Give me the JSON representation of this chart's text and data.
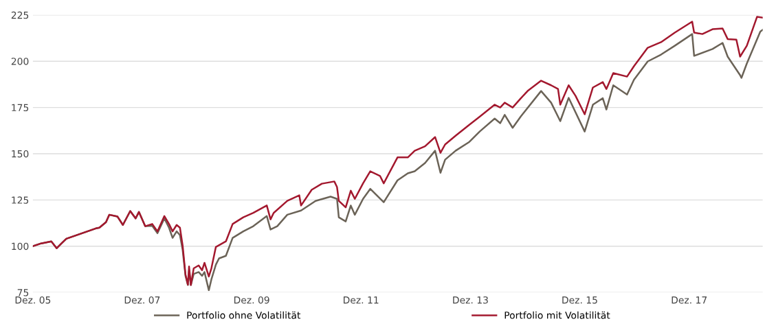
{
  "chart_data": {
    "type": "line",
    "xlim": [
      "2005-12-01",
      "2019-04-06"
    ],
    "xticks": [
      {
        "value": "2005-12-01",
        "label": "Dez. 05"
      },
      {
        "value": "2007-12-01",
        "label": "Dez. 07"
      },
      {
        "value": "2009-12-01",
        "label": "Dez. 09"
      },
      {
        "value": "2011-12-01",
        "label": "Dez. 11"
      },
      {
        "value": "2013-12-01",
        "label": "Dez. 13"
      },
      {
        "value": "2015-12-01",
        "label": "Dez. 15"
      },
      {
        "value": "2017-12-01",
        "label": "Dez. 17"
      }
    ],
    "ylim": [
      75,
      225
    ],
    "yticks": [
      75,
      100,
      125,
      150,
      175,
      200,
      225
    ],
    "grid": "y",
    "legend": "bottom",
    "line_style": "solid",
    "marker": "none",
    "series": [
      {
        "name": "Portfolio ohne Volatilität",
        "color": "#6b6357",
        "x": [
          "2005-12-01",
          "2006-01-25",
          "2006-04-03",
          "2006-05-09",
          "2006-06-10",
          "2006-07-12",
          "2007-01-25",
          "2007-02-18",
          "2007-04-03",
          "2007-04-25",
          "2007-06-19",
          "2007-07-25",
          "2007-09-12",
          "2007-10-18",
          "2007-11-09",
          "2007-12-21",
          "2008-02-06",
          "2008-03-12",
          "2008-04-27",
          "2008-05-28",
          "2008-06-21",
          "2008-07-18",
          "2008-08-09",
          "2008-08-27",
          "2008-09-15",
          "2008-10-01",
          "2008-10-09",
          "2008-10-21",
          "2008-11-09",
          "2008-12-12",
          "2009-01-04",
          "2009-01-20",
          "2009-02-18",
          "2009-03-07",
          "2009-04-06",
          "2009-04-27",
          "2009-06-12",
          "2009-07-27",
          "2009-10-06",
          "2009-12-12",
          "2010-03-12",
          "2010-04-06",
          "2010-05-21",
          "2010-07-27",
          "2010-10-27",
          "2011-02-01",
          "2011-05-12",
          "2011-06-24",
          "2011-07-06",
          "2011-08-21",
          "2011-09-24",
          "2011-10-21",
          "2011-12-15",
          "2012-02-01",
          "2012-05-01",
          "2012-08-01",
          "2012-10-09",
          "2012-11-24",
          "2013-02-01",
          "2013-04-09",
          "2013-05-15",
          "2013-06-15",
          "2013-08-24",
          "2013-11-24",
          "2014-02-01",
          "2014-05-12",
          "2014-06-18",
          "2014-07-18",
          "2014-09-09",
          "2014-11-03",
          "2015-03-18",
          "2015-05-24",
          "2015-07-24",
          "2015-09-18",
          "2016-01-03",
          "2016-02-27",
          "2016-05-03",
          "2016-05-27",
          "2016-07-12",
          "2016-10-12",
          "2016-11-27",
          "2017-02-27",
          "2017-05-27",
          "2017-08-27",
          "2017-12-21",
          "2018-01-03",
          "2018-05-06",
          "2018-07-12",
          "2018-08-15",
          "2018-11-06",
          "2018-11-15",
          "2018-12-21",
          "2019-03-21",
          "2019-04-06"
        ],
        "values": [
          100,
          101.5,
          102.6,
          98.9,
          101.5,
          104,
          109.6,
          110,
          113,
          117,
          116,
          111.5,
          119,
          115,
          118.5,
          110.8,
          111,
          107,
          115,
          110,
          104.5,
          108,
          106,
          98,
          84,
          79,
          87,
          79,
          85,
          86,
          84,
          86,
          76.2,
          82,
          90,
          93.4,
          94.8,
          104.5,
          108,
          110.8,
          116.3,
          109,
          110.8,
          117,
          119.3,
          124.5,
          126.8,
          125.6,
          115.6,
          113.4,
          122,
          117,
          125.6,
          131,
          123.8,
          135.6,
          139.4,
          140.5,
          145,
          151.6,
          139.7,
          146.8,
          151.6,
          156.4,
          162,
          169,
          166.5,
          171,
          164,
          170.2,
          183.9,
          177.6,
          167.6,
          180.2,
          162,
          176.5,
          180,
          173.9,
          187,
          182,
          190,
          199.9,
          203.6,
          208.4,
          214.7,
          202.9,
          206.6,
          209.9,
          202.5,
          192.5,
          191,
          198.8,
          216,
          217
        ]
      },
      {
        "name": "Portfolio mit Volatilität",
        "color": "#a3182e",
        "x": [
          "2005-12-01",
          "2006-01-25",
          "2006-04-03",
          "2006-05-09",
          "2006-06-10",
          "2006-07-12",
          "2007-01-25",
          "2007-02-18",
          "2007-04-03",
          "2007-04-25",
          "2007-06-19",
          "2007-07-25",
          "2007-09-12",
          "2007-10-18",
          "2007-11-09",
          "2007-12-21",
          "2008-02-06",
          "2008-03-12",
          "2008-04-27",
          "2008-05-28",
          "2008-06-21",
          "2008-07-18",
          "2008-08-09",
          "2008-08-27",
          "2008-09-15",
          "2008-10-01",
          "2008-10-09",
          "2008-10-21",
          "2008-11-09",
          "2008-12-12",
          "2009-01-04",
          "2009-01-20",
          "2009-02-18",
          "2009-03-07",
          "2009-04-06",
          "2009-06-12",
          "2009-07-27",
          "2009-10-06",
          "2009-12-12",
          "2010-03-12",
          "2010-04-06",
          "2010-04-27",
          "2010-07-27",
          "2010-10-15",
          "2010-10-27",
          "2011-01-06",
          "2011-03-15",
          "2011-06-06",
          "2011-06-24",
          "2011-07-06",
          "2011-08-21",
          "2011-09-24",
          "2011-10-21",
          "2011-12-15",
          "2012-02-01",
          "2012-04-06",
          "2012-05-01",
          "2012-08-01",
          "2012-10-09",
          "2012-11-24",
          "2013-02-01",
          "2013-04-09",
          "2013-05-15",
          "2013-06-15",
          "2013-08-24",
          "2013-11-24",
          "2014-02-01",
          "2014-05-12",
          "2014-06-18",
          "2014-07-18",
          "2014-09-09",
          "2014-11-03",
          "2014-12-18",
          "2015-03-18",
          "2015-05-24",
          "2015-07-09",
          "2015-07-24",
          "2015-09-18",
          "2015-11-03",
          "2016-01-03",
          "2016-02-27",
          "2016-05-03",
          "2016-05-27",
          "2016-07-12",
          "2016-10-12",
          "2016-11-27",
          "2017-02-27",
          "2017-05-27",
          "2017-08-27",
          "2017-12-21",
          "2018-01-03",
          "2018-02-27",
          "2018-05-06",
          "2018-07-12",
          "2018-08-15",
          "2018-10-12",
          "2018-11-06",
          "2018-12-21",
          "2019-02-27",
          "2019-04-06"
        ],
        "values": [
          100,
          101.5,
          102.6,
          98.9,
          101.5,
          104,
          109.6,
          110,
          113,
          117,
          116,
          111.5,
          119,
          115,
          118.5,
          110.8,
          112,
          108,
          116.3,
          112,
          108,
          111.5,
          110,
          100.4,
          84.8,
          79.2,
          89,
          79,
          88,
          89.6,
          87,
          91,
          83.6,
          88,
          99.6,
          102.6,
          112,
          115.6,
          118,
          122,
          114.5,
          118,
          124.5,
          127.5,
          122,
          130.5,
          133.8,
          135,
          132,
          124.5,
          121,
          130,
          125.6,
          134,
          140.5,
          138,
          134,
          148,
          148,
          151.6,
          154,
          159,
          150.5,
          155,
          159.7,
          165.7,
          170,
          176.5,
          175,
          177.6,
          175,
          180,
          183.9,
          189.5,
          187,
          185,
          176.5,
          187,
          181.3,
          171.3,
          185.8,
          188.7,
          185,
          193.6,
          191.7,
          197.3,
          207.3,
          210.3,
          215.5,
          221.4,
          215.5,
          214.7,
          217.3,
          217.7,
          212,
          211.7,
          202.5,
          208.4,
          224,
          223.6
        ]
      }
    ]
  }
}
